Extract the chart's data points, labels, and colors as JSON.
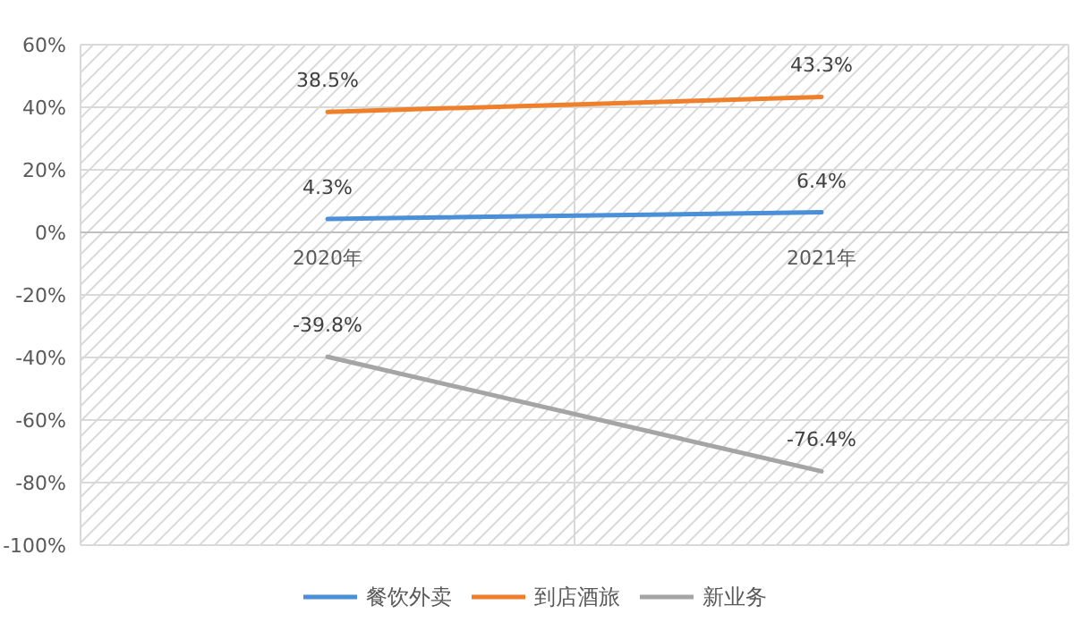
{
  "chart_data": {
    "type": "line",
    "categories": [
      "2020年",
      "2021年"
    ],
    "series": [
      {
        "name": "餐饮外卖",
        "color": "#4a8fd8",
        "values": [
          4.3,
          6.4
        ],
        "value_labels": [
          "4.3%",
          "6.4%"
        ]
      },
      {
        "name": "到店酒旅",
        "color": "#f07f2c",
        "values": [
          38.5,
          43.3
        ],
        "value_labels": [
          "38.5%",
          "43.3%"
        ]
      },
      {
        "name": "新业务",
        "color": "#a5a5a5",
        "values": [
          -39.8,
          -76.4
        ],
        "value_labels": [
          "-39.8%",
          "-76.4%"
        ]
      }
    ],
    "ylim": [
      -100,
      60
    ],
    "yticks": [
      {
        "value": -100,
        "label": "-100%"
      },
      {
        "value": -80,
        "label": "-80%"
      },
      {
        "value": -60,
        "label": "-60%"
      },
      {
        "value": -40,
        "label": "-40%"
      },
      {
        "value": -20,
        "label": "-20%"
      },
      {
        "value": 0,
        "label": "0%"
      },
      {
        "value": 20,
        "label": "20%"
      },
      {
        "value": 40,
        "label": "40%"
      },
      {
        "value": 60,
        "label": "60%"
      }
    ],
    "grid": true,
    "legend": "bottom",
    "marker": "none",
    "line_style": "solid"
  }
}
